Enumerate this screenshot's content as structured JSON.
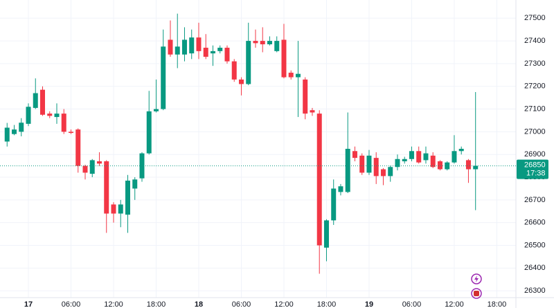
{
  "chart_data": {
    "type": "candlestick",
    "x": [
      -3,
      -2,
      -1,
      0,
      1,
      2,
      3,
      4,
      5,
      6,
      7,
      8,
      9,
      10,
      11,
      12,
      13,
      14,
      15,
      16,
      17,
      18,
      19,
      20,
      21,
      22,
      23,
      24,
      25,
      26,
      27,
      28,
      29,
      30,
      31,
      32,
      33,
      34,
      35,
      36,
      37,
      38,
      39,
      40,
      41,
      42,
      43,
      44,
      45,
      46,
      47,
      48,
      49,
      50,
      51,
      52,
      53,
      54,
      55,
      56,
      57,
      58,
      59,
      60,
      61,
      62,
      63
    ],
    "open": [
      26957,
      26990,
      27000,
      27035,
      27105,
      27185,
      27080,
      27065,
      27080,
      27000,
      27010,
      26850,
      26815,
      26870,
      26870,
      26680,
      26640,
      26635,
      26750,
      26795,
      26905,
      27090,
      27100,
      27405,
      27340,
      27340,
      27345,
      27415,
      27370,
      27345,
      27355,
      27370,
      27310,
      27230,
      27210,
      27400,
      27400,
      27385,
      27355,
      27405,
      27260,
      27240,
      27230,
      27095,
      27080,
      26490,
      26610,
      26735,
      26735,
      26915,
      26895,
      26820,
      26885,
      26835,
      26805,
      26845,
      26870,
      26880,
      26915,
      26875,
      26895,
      26870,
      26835,
      26865,
      26915,
      26875,
      26835
    ],
    "high": [
      27039,
      27030,
      27060,
      27125,
      27235,
      27200,
      27090,
      27125,
      27100,
      27010,
      27015,
      26855,
      26880,
      26910,
      26875,
      26690,
      26700,
      26810,
      26800,
      26910,
      27180,
      27230,
      27450,
      27490,
      27520,
      27460,
      27450,
      27480,
      27430,
      27380,
      27380,
      27380,
      27320,
      27240,
      27480,
      27450,
      27460,
      27420,
      27420,
      27475,
      27270,
      27400,
      27240,
      27105,
      27095,
      26615,
      26790,
      26770,
      27085,
      26935,
      26905,
      26920,
      26910,
      26840,
      26850,
      26900,
      26890,
      26935,
      26935,
      26935,
      26910,
      26875,
      26870,
      26985,
      26935,
      26880,
      27175
    ],
    "low": [
      26935,
      26985,
      26980,
      27025,
      27100,
      27070,
      27060,
      27035,
      26990,
      26990,
      26820,
      26790,
      26800,
      26850,
      26555,
      26600,
      26580,
      26555,
      26700,
      26780,
      26900,
      27085,
      27095,
      27330,
      27280,
      27310,
      27320,
      27320,
      27320,
      27290,
      27345,
      27300,
      27220,
      27160,
      27205,
      27370,
      27350,
      27380,
      27350,
      27235,
      27230,
      27065,
      27055,
      27070,
      26375,
      26430,
      26590,
      26720,
      26730,
      26870,
      26810,
      26810,
      26770,
      26765,
      26780,
      26830,
      26860,
      26870,
      26860,
      26860,
      26840,
      26830,
      26830,
      26860,
      26900,
      26775,
      26655
    ],
    "close": [
      27018,
      27010,
      27040,
      27110,
      27170,
      27075,
      27070,
      27080,
      27000,
      26995,
      26850,
      26820,
      26875,
      26860,
      26640,
      26640,
      26680,
      26785,
      26790,
      26905,
      27090,
      27100,
      27375,
      27340,
      27375,
      27405,
      27415,
      27355,
      27330,
      27355,
      27370,
      27310,
      27230,
      27210,
      27400,
      27390,
      27385,
      27400,
      27400,
      27240,
      27240,
      27255,
      27080,
      27085,
      26500,
      26610,
      26750,
      26760,
      26925,
      26885,
      26820,
      26895,
      26805,
      26805,
      26845,
      26880,
      26880,
      26915,
      26865,
      26905,
      26845,
      26835,
      26865,
      26915,
      26925,
      26835,
      26850
    ],
    "up_color": "#089981",
    "down_color": "#f23645",
    "xlim": [
      -4,
      68.2
    ],
    "ylim": [
      26270,
      27580
    ],
    "xticks": [
      {
        "value": 0,
        "label": "17"
      },
      {
        "value": 6,
        "label": "06:00"
      },
      {
        "value": 12,
        "label": "12:00"
      },
      {
        "value": 18,
        "label": "18:00"
      },
      {
        "value": 24,
        "label": "18"
      },
      {
        "value": 30,
        "label": "06:00"
      },
      {
        "value": 36,
        "label": "12:00"
      },
      {
        "value": 42,
        "label": "18:00"
      },
      {
        "value": 48,
        "label": "19"
      },
      {
        "value": 54,
        "label": "06:00"
      },
      {
        "value": 60,
        "label": "12:00"
      },
      {
        "value": 66,
        "label": "18:00"
      }
    ],
    "yticks": [
      27500,
      27400,
      27300,
      27200,
      27100,
      27000,
      26900,
      26800,
      26700,
      26600,
      26500,
      26400,
      26300
    ],
    "grid": true,
    "price_tag": {
      "value": 26850,
      "countdown": "17:38"
    }
  }
}
